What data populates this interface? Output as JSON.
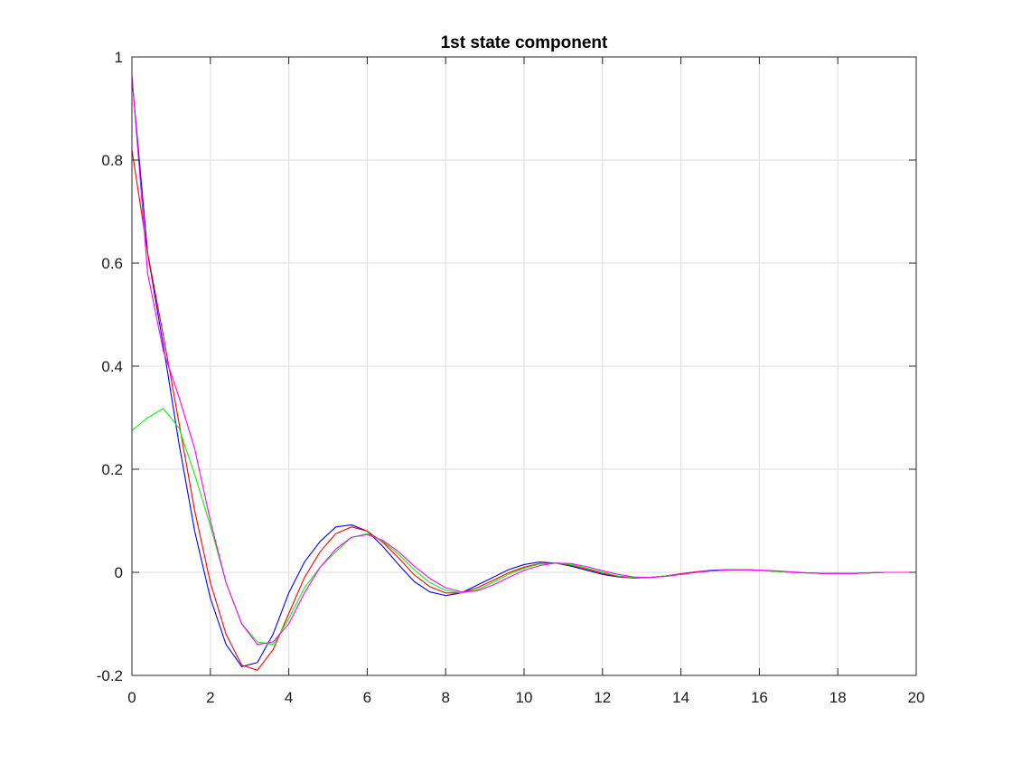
{
  "chart_data": {
    "type": "line",
    "title": "1st state component",
    "xlabel": "",
    "ylabel": "",
    "xlim": [
      0,
      20
    ],
    "ylim": [
      -0.2,
      1
    ],
    "xticks": [
      0,
      2,
      4,
      6,
      8,
      10,
      12,
      14,
      16,
      18,
      20
    ],
    "yticks": [
      -0.2,
      0,
      0.2,
      0.4,
      0.6,
      0.8,
      1
    ],
    "xtick_labels": [
      "0",
      "2",
      "4",
      "6",
      "8",
      "10",
      "12",
      "14",
      "16",
      "18",
      "20"
    ],
    "ytick_labels": [
      "-0.2",
      "0",
      "0.2",
      "0.4",
      "0.6",
      "0.8",
      "1"
    ],
    "grid": true,
    "legend": "none",
    "series": [
      {
        "color": "#0000ff",
        "points": [
          [
            0,
            0.96
          ],
          [
            0.4,
            0.62
          ],
          [
            0.8,
            0.44
          ],
          [
            1.2,
            0.25
          ],
          [
            1.6,
            0.08
          ],
          [
            2.0,
            -0.05
          ],
          [
            2.4,
            -0.14
          ],
          [
            2.8,
            -0.183
          ],
          [
            3.2,
            -0.175
          ],
          [
            3.6,
            -0.12
          ],
          [
            4.0,
            -0.04
          ],
          [
            4.4,
            0.02
          ],
          [
            4.8,
            0.06
          ],
          [
            5.2,
            0.088
          ],
          [
            5.6,
            0.092
          ],
          [
            6.0,
            0.08
          ],
          [
            6.4,
            0.05
          ],
          [
            6.8,
            0.015
          ],
          [
            7.2,
            -0.018
          ],
          [
            7.6,
            -0.038
          ],
          [
            8.0,
            -0.045
          ],
          [
            8.4,
            -0.04
          ],
          [
            8.8,
            -0.025
          ],
          [
            9.2,
            -0.01
          ],
          [
            9.6,
            0.005
          ],
          [
            10.0,
            0.015
          ],
          [
            10.4,
            0.02
          ],
          [
            10.8,
            0.018
          ],
          [
            11.2,
            0.012
          ],
          [
            11.6,
            0.004
          ],
          [
            12.0,
            -0.004
          ],
          [
            12.4,
            -0.009
          ],
          [
            12.8,
            -0.011
          ],
          [
            13.2,
            -0.01
          ],
          [
            13.6,
            -0.007
          ],
          [
            14.0,
            -0.003
          ],
          [
            14.4,
            0.001
          ],
          [
            14.8,
            0.004
          ],
          [
            15.2,
            0.005
          ],
          [
            15.6,
            0.005
          ],
          [
            16.0,
            0.004
          ],
          [
            16.4,
            0.002
          ],
          [
            16.8,
            0.0
          ],
          [
            17.2,
            -0.001
          ],
          [
            17.6,
            -0.002
          ],
          [
            18.0,
            -0.002
          ],
          [
            18.4,
            -0.002
          ],
          [
            18.8,
            -0.001
          ],
          [
            19.2,
            0.0
          ],
          [
            19.6,
            0.0
          ],
          [
            20.0,
            0.0
          ]
        ]
      },
      {
        "color": "#ff0000",
        "points": [
          [
            0,
            0.82
          ],
          [
            0.4,
            0.62
          ],
          [
            0.8,
            0.46
          ],
          [
            1.2,
            0.29
          ],
          [
            1.6,
            0.12
          ],
          [
            2.0,
            -0.02
          ],
          [
            2.4,
            -0.12
          ],
          [
            2.8,
            -0.18
          ],
          [
            3.2,
            -0.19
          ],
          [
            3.6,
            -0.15
          ],
          [
            4.0,
            -0.08
          ],
          [
            4.4,
            -0.01
          ],
          [
            4.8,
            0.04
          ],
          [
            5.2,
            0.075
          ],
          [
            5.6,
            0.088
          ],
          [
            6.0,
            0.08
          ],
          [
            6.4,
            0.058
          ],
          [
            6.8,
            0.028
          ],
          [
            7.2,
            -0.005
          ],
          [
            7.6,
            -0.028
          ],
          [
            8.0,
            -0.04
          ],
          [
            8.4,
            -0.04
          ],
          [
            8.8,
            -0.03
          ],
          [
            9.2,
            -0.016
          ],
          [
            9.6,
            -0.001
          ],
          [
            10.0,
            0.01
          ],
          [
            10.4,
            0.017
          ],
          [
            10.8,
            0.018
          ],
          [
            11.2,
            0.014
          ],
          [
            11.6,
            0.006
          ],
          [
            12.0,
            -0.002
          ],
          [
            12.4,
            -0.008
          ],
          [
            12.8,
            -0.011
          ],
          [
            13.2,
            -0.01
          ],
          [
            13.6,
            -0.007
          ],
          [
            14.0,
            -0.003
          ],
          [
            14.4,
            0.001
          ],
          [
            14.8,
            0.003
          ],
          [
            15.2,
            0.005
          ],
          [
            15.6,
            0.005
          ],
          [
            16.0,
            0.004
          ],
          [
            16.4,
            0.002
          ],
          [
            16.8,
            0.0
          ],
          [
            17.2,
            -0.001
          ],
          [
            17.6,
            -0.002
          ],
          [
            18.0,
            -0.002
          ],
          [
            18.4,
            -0.002
          ],
          [
            18.8,
            -0.001
          ],
          [
            19.2,
            0.0
          ],
          [
            19.6,
            0.0
          ],
          [
            20.0,
            0.0
          ]
        ]
      },
      {
        "color": "#00ff00",
        "points": [
          [
            0,
            0.275
          ],
          [
            0.4,
            0.3
          ],
          [
            0.8,
            0.318
          ],
          [
            1.2,
            0.28
          ],
          [
            1.6,
            0.19
          ],
          [
            2.0,
            0.09
          ],
          [
            2.4,
            -0.02
          ],
          [
            2.8,
            -0.1
          ],
          [
            3.2,
            -0.135
          ],
          [
            3.6,
            -0.14
          ],
          [
            4.0,
            -0.09
          ],
          [
            4.4,
            -0.03
          ],
          [
            4.8,
            0.01
          ],
          [
            5.2,
            0.04
          ],
          [
            5.6,
            0.068
          ],
          [
            6.0,
            0.075
          ],
          [
            6.4,
            0.06
          ],
          [
            6.8,
            0.035
          ],
          [
            7.2,
            0.005
          ],
          [
            7.6,
            -0.02
          ],
          [
            8.0,
            -0.035
          ],
          [
            8.4,
            -0.04
          ],
          [
            8.8,
            -0.034
          ],
          [
            9.2,
            -0.02
          ],
          [
            9.6,
            -0.004
          ],
          [
            10.0,
            0.008
          ],
          [
            10.4,
            0.016
          ],
          [
            10.8,
            0.018
          ],
          [
            11.2,
            0.015
          ],
          [
            11.6,
            0.008
          ],
          [
            12.0,
            0.0
          ],
          [
            12.4,
            -0.007
          ],
          [
            12.8,
            -0.01
          ],
          [
            13.2,
            -0.01
          ],
          [
            13.6,
            -0.007
          ],
          [
            14.0,
            -0.004
          ],
          [
            14.4,
            0.0
          ],
          [
            14.8,
            0.003
          ],
          [
            15.2,
            0.004
          ],
          [
            15.6,
            0.005
          ],
          [
            16.0,
            0.004
          ],
          [
            16.4,
            0.002
          ],
          [
            16.8,
            0.0
          ],
          [
            17.2,
            -0.001
          ],
          [
            17.6,
            -0.002
          ],
          [
            18.0,
            -0.002
          ],
          [
            18.4,
            -0.002
          ],
          [
            18.8,
            -0.001
          ],
          [
            19.2,
            0.0
          ],
          [
            19.6,
            0.0
          ],
          [
            20.0,
            0.0
          ]
        ]
      },
      {
        "color": "#ff00ff",
        "points": [
          [
            0,
            0.965
          ],
          [
            0.4,
            0.58
          ],
          [
            0.8,
            0.43
          ],
          [
            1.2,
            0.34
          ],
          [
            1.6,
            0.24
          ],
          [
            2.0,
            0.1
          ],
          [
            2.4,
            -0.02
          ],
          [
            2.8,
            -0.1
          ],
          [
            3.2,
            -0.14
          ],
          [
            3.6,
            -0.135
          ],
          [
            4.0,
            -0.1
          ],
          [
            4.4,
            -0.04
          ],
          [
            4.8,
            0.01
          ],
          [
            5.2,
            0.045
          ],
          [
            5.6,
            0.068
          ],
          [
            6.0,
            0.073
          ],
          [
            6.4,
            0.062
          ],
          [
            6.8,
            0.04
          ],
          [
            7.2,
            0.012
          ],
          [
            7.6,
            -0.012
          ],
          [
            8.0,
            -0.03
          ],
          [
            8.4,
            -0.038
          ],
          [
            8.8,
            -0.036
          ],
          [
            9.2,
            -0.025
          ],
          [
            9.6,
            -0.01
          ],
          [
            10.0,
            0.004
          ],
          [
            10.4,
            0.013
          ],
          [
            10.8,
            0.018
          ],
          [
            11.2,
            0.017
          ],
          [
            11.6,
            0.011
          ],
          [
            12.0,
            0.003
          ],
          [
            12.4,
            -0.004
          ],
          [
            12.8,
            -0.009
          ],
          [
            13.2,
            -0.01
          ],
          [
            13.6,
            -0.008
          ],
          [
            14.0,
            -0.004
          ],
          [
            14.4,
            0.0
          ],
          [
            14.8,
            0.003
          ],
          [
            15.2,
            0.005
          ],
          [
            15.6,
            0.005
          ],
          [
            16.0,
            0.004
          ],
          [
            16.4,
            0.003
          ],
          [
            16.8,
            0.001
          ],
          [
            17.2,
            -0.001
          ],
          [
            17.6,
            -0.002
          ],
          [
            18.0,
            -0.002
          ],
          [
            18.4,
            -0.002
          ],
          [
            18.8,
            -0.001
          ],
          [
            19.2,
            0.0
          ],
          [
            19.6,
            0.0
          ],
          [
            20.0,
            0.0
          ]
        ]
      }
    ]
  }
}
